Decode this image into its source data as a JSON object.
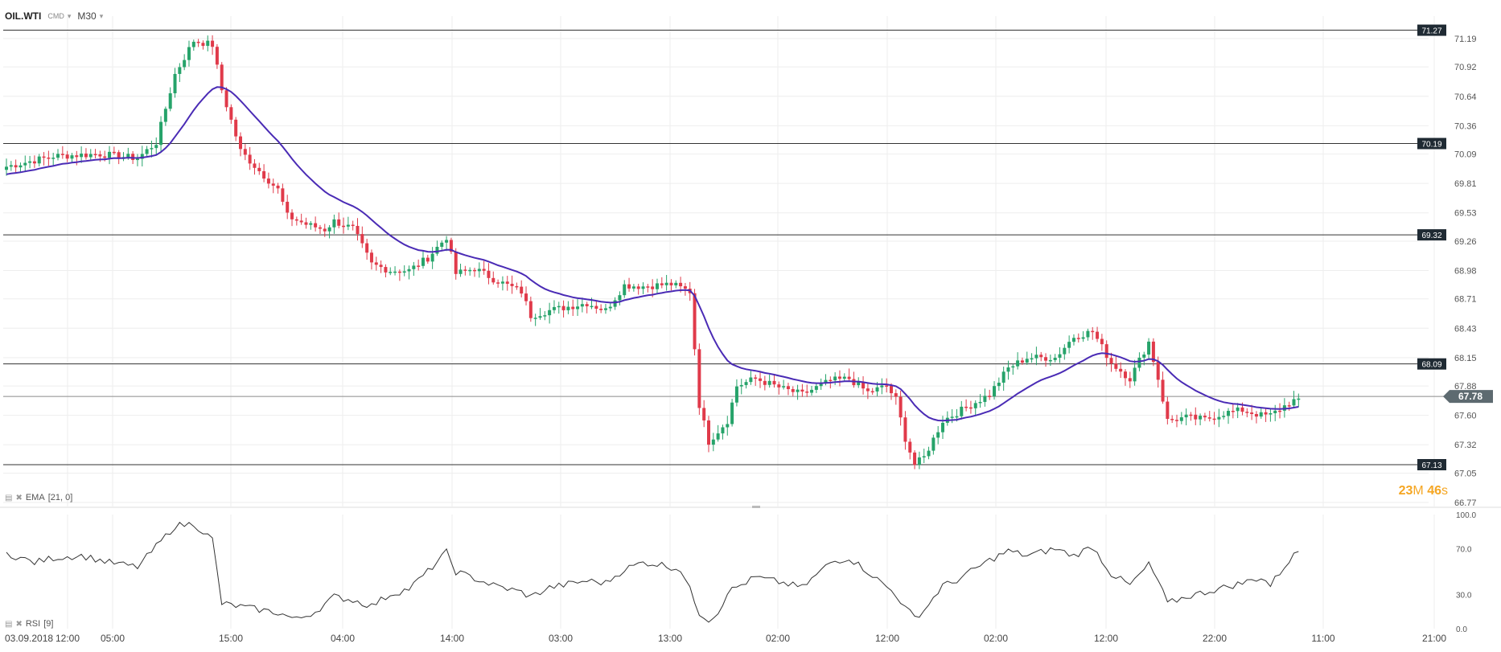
{
  "toolbar": {
    "symbol": "OIL.WTI",
    "exchange": "CMD",
    "timeframe": "M30"
  },
  "countdown": {
    "minutes": "23",
    "min_unit": "M",
    "seconds": "46",
    "sec_unit": "s"
  },
  "indicators": {
    "ema_label": "EMA",
    "ema_params": "[21, 0]",
    "rsi_label": "RSI",
    "rsi_params": "[9]"
  },
  "colors": {
    "up": "#26a36a",
    "down": "#e03a4a",
    "ema": "#4a2bb5",
    "grid": "#eeeeee",
    "level": "#333333",
    "label_bg": "#1f2a33",
    "current_bg": "#5d6a70"
  },
  "chart_data": [
    {
      "type": "candlestick",
      "series": [
        {
          "name": "OIL.WTI"
        },
        {
          "name": "EMA"
        }
      ],
      "y_ticks": [
        "71.19",
        "70.92",
        "70.64",
        "70.36",
        "70.09",
        "69.81",
        "69.53",
        "69.26",
        "68.98",
        "68.71",
        "68.43",
        "68.15",
        "67.88",
        "67.60",
        "67.32",
        "67.05",
        "66.77"
      ],
      "x_ticks": [
        "03.09.2018",
        "12:00",
        "05:00",
        "15:00",
        "04:00",
        "14:00",
        "03:00",
        "13:00",
        "02:00",
        "12:00",
        "02:00",
        "12:00",
        "22:00",
        "11:00",
        "21:00"
      ],
      "ylim": [
        66.77,
        71.4
      ],
      "levels": [
        "71.27",
        "70.19",
        "69.32",
        "68.09",
        "67.13"
      ],
      "current_price": "67.78",
      "close_anchors": [
        [
          0,
          69.97
        ],
        [
          10,
          70.07
        ],
        [
          20,
          70.09
        ],
        [
          28,
          70.05
        ],
        [
          32,
          70.2
        ],
        [
          36,
          70.85
        ],
        [
          40,
          71.17
        ],
        [
          44,
          71.13
        ],
        [
          46,
          70.7
        ],
        [
          50,
          70.12
        ],
        [
          54,
          69.93
        ],
        [
          58,
          69.75
        ],
        [
          60,
          69.5
        ],
        [
          64,
          69.42
        ],
        [
          68,
          69.37
        ],
        [
          70,
          69.45
        ],
        [
          74,
          69.38
        ],
        [
          78,
          69.04
        ],
        [
          82,
          68.98
        ],
        [
          86,
          68.98
        ],
        [
          90,
          69.1
        ],
        [
          94,
          69.3
        ],
        [
          96,
          68.95
        ],
        [
          100,
          69.0
        ],
        [
          104,
          68.9
        ],
        [
          110,
          68.78
        ],
        [
          112,
          68.55
        ],
        [
          116,
          68.6
        ],
        [
          124,
          68.67
        ],
        [
          128,
          68.6
        ],
        [
          132,
          68.84
        ],
        [
          136,
          68.83
        ],
        [
          142,
          68.85
        ],
        [
          146,
          68.78
        ],
        [
          148,
          67.7
        ],
        [
          150,
          67.35
        ],
        [
          152,
          67.45
        ],
        [
          154,
          67.55
        ],
        [
          156,
          67.88
        ],
        [
          160,
          67.95
        ],
        [
          166,
          67.85
        ],
        [
          170,
          67.8
        ],
        [
          176,
          67.93
        ],
        [
          180,
          67.95
        ],
        [
          184,
          67.82
        ],
        [
          188,
          67.88
        ],
        [
          190,
          67.75
        ],
        [
          192,
          67.38
        ],
        [
          194,
          67.13
        ],
        [
          196,
          67.2
        ],
        [
          200,
          67.55
        ],
        [
          202,
          67.6
        ],
        [
          206,
          67.7
        ],
        [
          210,
          67.8
        ],
        [
          214,
          68.05
        ],
        [
          218,
          68.15
        ],
        [
          224,
          68.15
        ],
        [
          228,
          68.35
        ],
        [
          232,
          68.4
        ],
        [
          236,
          68.1
        ],
        [
          240,
          67.95
        ],
        [
          244,
          68.3
        ],
        [
          246,
          67.95
        ],
        [
          248,
          67.55
        ],
        [
          252,
          67.58
        ],
        [
          256,
          67.56
        ],
        [
          260,
          67.62
        ],
        [
          264,
          67.65
        ],
        [
          268,
          67.6
        ],
        [
          270,
          67.6
        ],
        [
          274,
          67.72
        ],
        [
          276,
          67.76
        ]
      ],
      "candle_count": 277
    },
    {
      "type": "line",
      "series": [
        {
          "name": "RSI"
        }
      ],
      "y_ticks": [
        "100.0",
        "70.0",
        "30.0",
        "0.0"
      ],
      "ylim": [
        0,
        100
      ],
      "rsi_anchors": [
        [
          0,
          66
        ],
        [
          6,
          58
        ],
        [
          10,
          62
        ],
        [
          16,
          64
        ],
        [
          22,
          58
        ],
        [
          28,
          54
        ],
        [
          32,
          72
        ],
        [
          36,
          90
        ],
        [
          40,
          92
        ],
        [
          44,
          78
        ],
        [
          46,
          22
        ],
        [
          52,
          18
        ],
        [
          58,
          14
        ],
        [
          62,
          8
        ],
        [
          66,
          15
        ],
        [
          70,
          28
        ],
        [
          74,
          25
        ],
        [
          78,
          20
        ],
        [
          82,
          30
        ],
        [
          86,
          35
        ],
        [
          90,
          50
        ],
        [
          94,
          67
        ],
        [
          96,
          50
        ],
        [
          100,
          44
        ],
        [
          104,
          38
        ],
        [
          110,
          32
        ],
        [
          112,
          28
        ],
        [
          116,
          36
        ],
        [
          124,
          42
        ],
        [
          128,
          40
        ],
        [
          132,
          52
        ],
        [
          136,
          58
        ],
        [
          140,
          56
        ],
        [
          144,
          52
        ],
        [
          146,
          34
        ],
        [
          148,
          14
        ],
        [
          150,
          8
        ],
        [
          152,
          14
        ],
        [
          154,
          32
        ],
        [
          160,
          45
        ],
        [
          166,
          40
        ],
        [
          170,
          36
        ],
        [
          176,
          58
        ],
        [
          180,
          62
        ],
        [
          184,
          50
        ],
        [
          190,
          30
        ],
        [
          192,
          18
        ],
        [
          194,
          10
        ],
        [
          196,
          16
        ],
        [
          200,
          38
        ],
        [
          202,
          40
        ],
        [
          206,
          50
        ],
        [
          210,
          60
        ],
        [
          214,
          68
        ],
        [
          218,
          64
        ],
        [
          224,
          70
        ],
        [
          228,
          64
        ],
        [
          232,
          72
        ],
        [
          236,
          48
        ],
        [
          240,
          38
        ],
        [
          244,
          56
        ],
        [
          246,
          42
        ],
        [
          248,
          22
        ],
        [
          252,
          28
        ],
        [
          256,
          32
        ],
        [
          260,
          36
        ],
        [
          264,
          40
        ],
        [
          268,
          45
        ],
        [
          270,
          38
        ],
        [
          274,
          60
        ],
        [
          276,
          68
        ]
      ]
    }
  ]
}
